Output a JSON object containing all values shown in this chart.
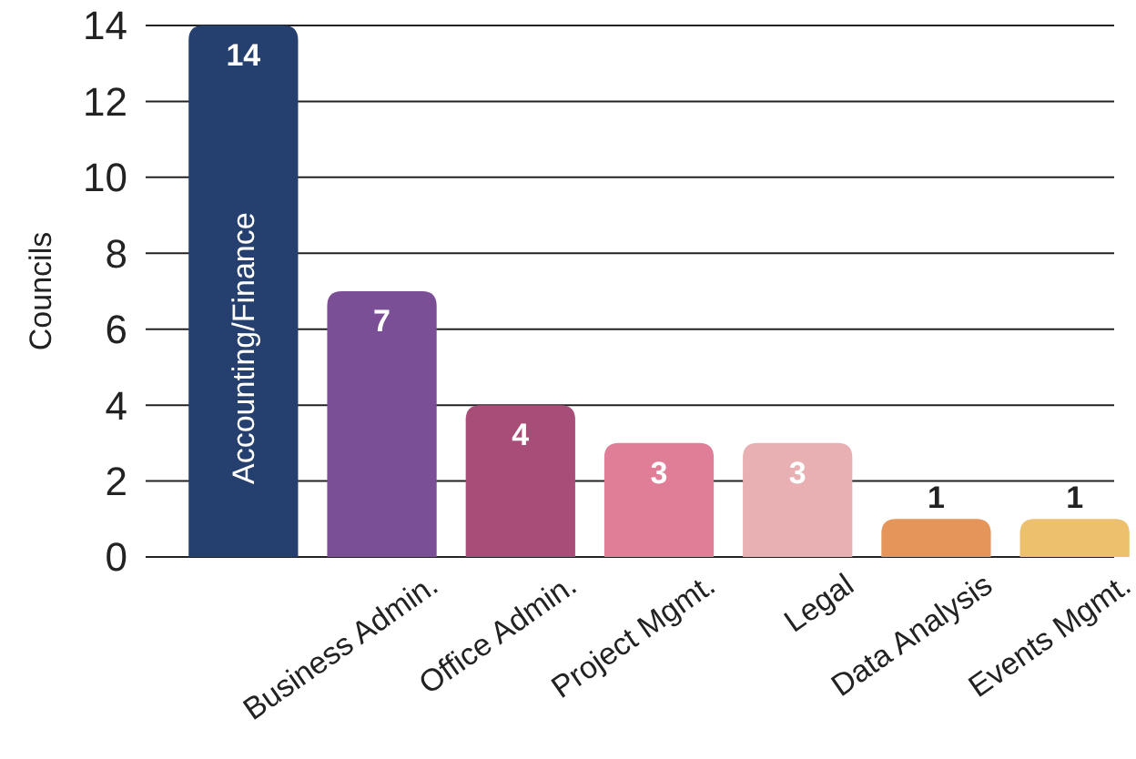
{
  "chart_data": {
    "type": "bar",
    "ylabel": "Councils",
    "categories": [
      "Accounting/Finance",
      "Business Admin.",
      "Office Admin.",
      "Project Mgmt.",
      "Legal",
      "Data Analysis",
      "Events Mgmt."
    ],
    "values": [
      14,
      7,
      4,
      3,
      3,
      1,
      1
    ],
    "colors": [
      "#253f6e",
      "#7b4f96",
      "#a84c78",
      "#e07d97",
      "#e8b0b3",
      "#e6955a",
      "#ecc06c"
    ],
    "ylim": [
      0,
      14
    ],
    "yticks": [
      0,
      2,
      4,
      6,
      8,
      10,
      12,
      14
    ],
    "grid": "y",
    "data_labels": true
  }
}
